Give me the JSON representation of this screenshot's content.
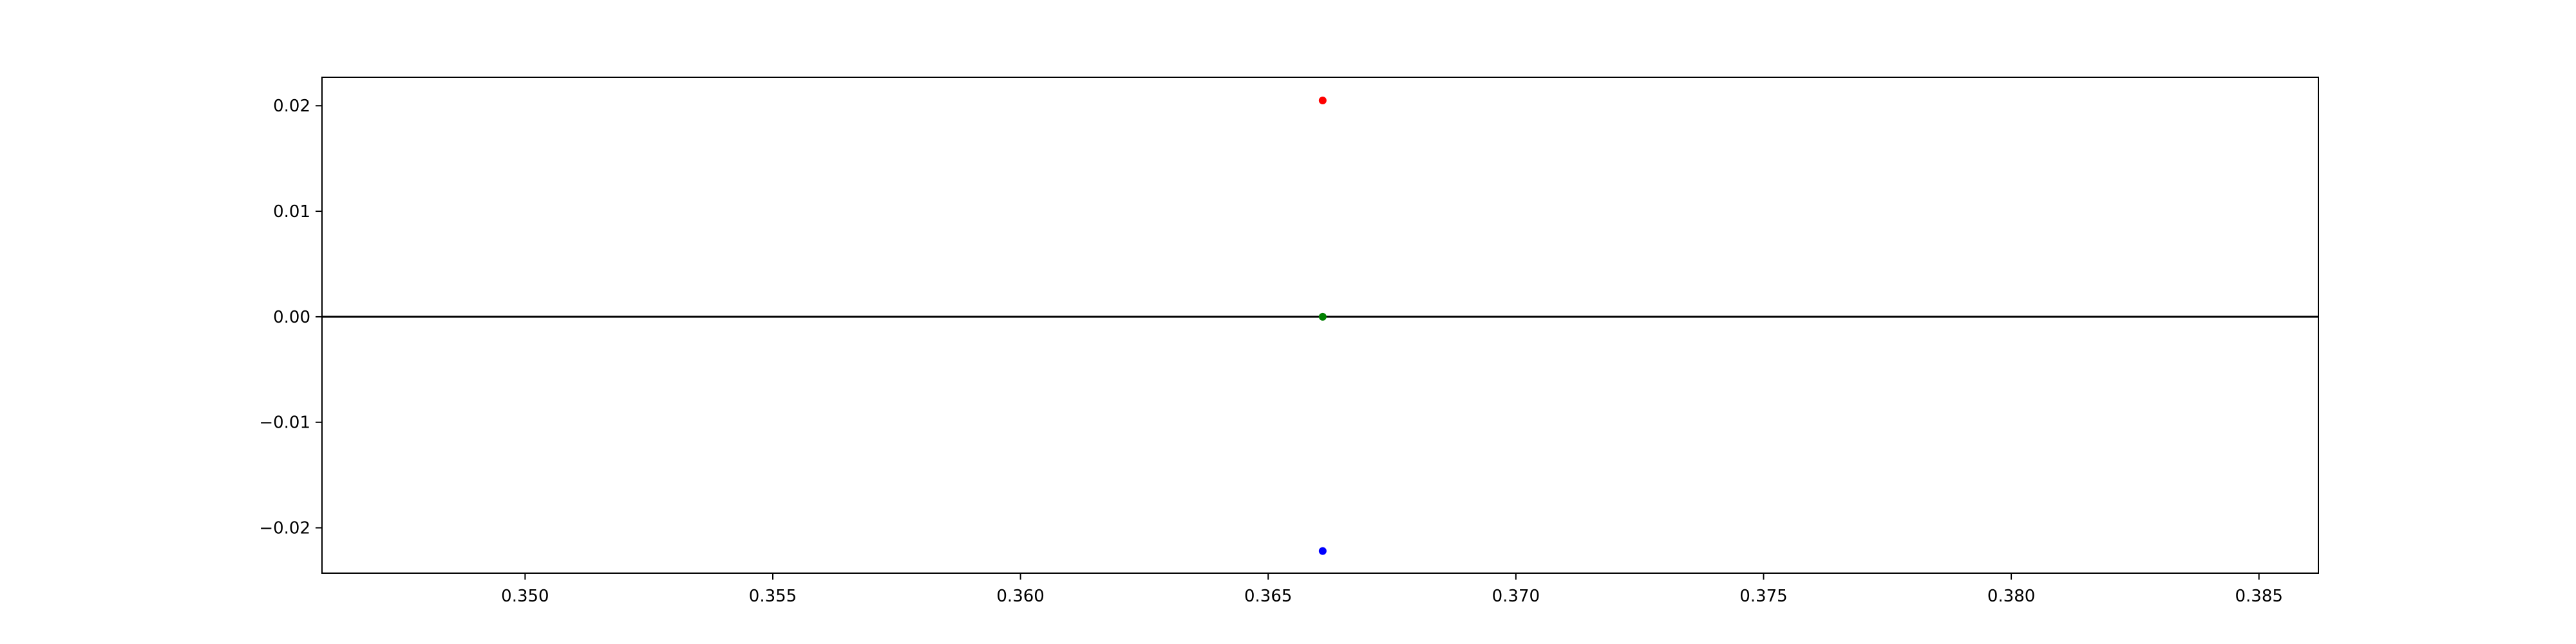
{
  "chart_data": {
    "type": "scatter",
    "title": "",
    "xlabel": "",
    "ylabel": "",
    "xlim": [
      0.3459,
      0.3862
    ],
    "ylim": [
      -0.0243,
      0.0227
    ],
    "x_ticks": [
      0.35,
      0.355,
      0.36,
      0.365,
      0.37,
      0.375,
      0.38,
      0.385
    ],
    "x_tick_labels": [
      "0.350",
      "0.355",
      "0.360",
      "0.365",
      "0.370",
      "0.375",
      "0.380",
      "0.385"
    ],
    "y_ticks": [
      0.02,
      0.01,
      0.0,
      -0.01,
      -0.02
    ],
    "y_tick_labels": [
      "0.02",
      "0.01",
      "0.00",
      "−0.01",
      "−0.02"
    ],
    "horizontal_line": {
      "y": 0.0,
      "color": "#000000"
    },
    "grid": false,
    "legend": false,
    "series": [
      {
        "color": "#ff0000",
        "points": [
          {
            "x": 0.3661,
            "y": 0.0205
          }
        ]
      },
      {
        "color": "#008000",
        "points": [
          {
            "x": 0.3661,
            "y": 0.0
          }
        ]
      },
      {
        "color": "#0000ff",
        "points": [
          {
            "x": 0.3661,
            "y": -0.0222
          }
        ]
      }
    ]
  }
}
